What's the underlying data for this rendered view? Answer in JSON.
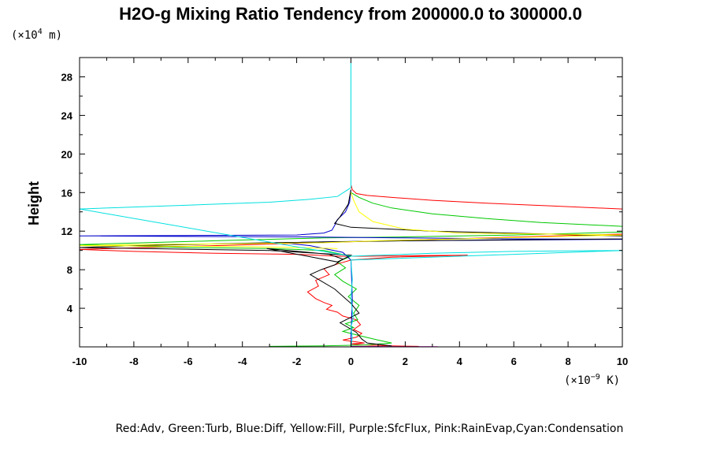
{
  "chart_data": {
    "type": "line",
    "title": "H2O-g Mixing Ratio Tendency from 200000.0 to 300000.0",
    "ylabel": "Height",
    "y_unit": {
      "base": "(×10",
      "exp": "4",
      "rest": " m)"
    },
    "x_unit": {
      "base": "(×10",
      "exp": "−9",
      "rest": " K)"
    },
    "caption": "Red:Adv, Green:Turb, Blue:Diff, Yellow:Fill, Purple:SfcFlux, Pink:RainEvap,Cyan:Condensation",
    "xlim": [
      -10,
      10
    ],
    "ylim": [
      0,
      30
    ],
    "x_ticks": [
      -10,
      -8,
      -6,
      -4,
      -2,
      0,
      2,
      4,
      6,
      8,
      10
    ],
    "y_ticks": [
      4,
      8,
      12,
      16,
      20,
      24,
      28
    ],
    "x_unit_scale": "1e-9",
    "y_unit_scale": "1e4 m",
    "series": [
      {
        "color": "#ff0000",
        "x": [
          0.0,
          0.05,
          0.2,
          0.6,
          1.5,
          3.0,
          5.0,
          7.5,
          10.0,
          10.0,
          -10.0,
          -8.0,
          -5.0,
          -2.0,
          -0.5,
          0.5,
          2.0,
          4.3,
          1.5,
          0.0,
          -0.5,
          -1.0,
          -0.8,
          -1.3,
          -1.2,
          -1.6,
          -1.3,
          -1.0,
          -0.7,
          -0.9,
          -0.5,
          -0.3,
          0.2,
          0.35,
          0.1,
          0.4,
          0.2,
          -0.3,
          0.5,
          0.0,
          0.5,
          1.5,
          2.5
        ],
        "y": [
          16.8,
          16.3,
          15.9,
          15.7,
          15.5,
          15.2,
          14.9,
          14.6,
          14.3,
          11.7,
          10.1,
          9.9,
          9.7,
          9.6,
          9.4,
          9.4,
          9.45,
          9.5,
          9.3,
          9.0,
          8.6,
          8.1,
          7.5,
          6.9,
          6.3,
          5.7,
          5.0,
          4.6,
          4.3,
          3.9,
          3.6,
          3.2,
          2.8,
          2.3,
          1.8,
          1.4,
          1.0,
          0.7,
          0.4,
          0.3,
          0.2,
          0.1,
          0.05
        ]
      },
      {
        "color": "#00c800",
        "x": [
          0.0,
          0.3,
          0.8,
          1.5,
          3.0,
          5.0,
          7.0,
          10.0,
          10.0,
          6.0,
          2.0,
          -1.0,
          -5.0,
          -10.0,
          -6.0,
          -3.0,
          -1.0,
          0.0,
          -0.5,
          -0.2,
          -0.6,
          -0.3,
          0.2,
          -0.1,
          0.3,
          0.1,
          0.25,
          -0.2,
          0.1,
          -0.3,
          0.4,
          1.0,
          1.5,
          0.5,
          -1.0,
          -3.0
        ],
        "y": [
          16.0,
          15.5,
          14.9,
          14.4,
          13.8,
          13.3,
          12.9,
          12.5,
          11.9,
          11.6,
          11.4,
          11.3,
          11.0,
          10.6,
          10.3,
          10.2,
          10.0,
          9.4,
          8.8,
          8.2,
          7.5,
          6.8,
          6.0,
          5.2,
          4.3,
          3.5,
          2.8,
          2.4,
          2.0,
          1.6,
          1.1,
          0.7,
          0.4,
          0.2,
          0.1,
          0.05
        ]
      },
      {
        "color": "#0000cc",
        "x": [
          0.0,
          -0.05,
          -0.2,
          -0.5,
          -0.6,
          -0.7,
          -1.0,
          -2.0,
          -6.0,
          -10.0,
          -2.0,
          2.0,
          6.0,
          10.0,
          2.0,
          -1.0,
          -2.5,
          -1.5,
          -0.3,
          0.0,
          0.05,
          0.0,
          0.02
        ],
        "y": [
          16.3,
          15.0,
          14.0,
          13.2,
          12.6,
          12.1,
          11.8,
          11.6,
          11.55,
          11.5,
          11.4,
          11.3,
          11.2,
          11.15,
          11.0,
          10.9,
          10.8,
          10.5,
          9.8,
          9.0,
          5.0,
          1.0,
          0.2
        ]
      },
      {
        "color": "#000000",
        "x": [
          0.0,
          -0.1,
          -0.4,
          -0.6,
          0.0,
          3.0,
          10.0,
          10.0,
          2.0,
          -3.0,
          -8.0,
          -10.0,
          -3.0,
          0.0,
          -0.5,
          -3.1,
          -0.8,
          -0.3,
          -0.6,
          -1.1,
          -1.5,
          -1.2,
          -0.6,
          0.0,
          0.3,
          -0.4,
          0.2,
          0.4,
          0.6,
          1.5
        ],
        "y": [
          16.3,
          14.8,
          13.5,
          12.8,
          12.4,
          12.0,
          11.5,
          11.2,
          11.0,
          10.8,
          10.5,
          10.3,
          10.0,
          9.5,
          8.8,
          10.2,
          9.6,
          9.1,
          8.5,
          8.0,
          7.5,
          7.0,
          6.0,
          4.5,
          3.5,
          2.5,
          1.5,
          0.8,
          0.4,
          0.1
        ]
      },
      {
        "color": "#ffff00",
        "x": [
          0.0,
          0.1,
          0.3,
          0.8,
          2.0,
          4.0,
          10.0,
          4.0,
          1.0,
          -1.0,
          -4.0,
          -8.0,
          -10.0,
          -4.0,
          -2.0,
          -0.5
        ],
        "y": [
          16.0,
          15.2,
          14.0,
          13.0,
          12.2,
          11.8,
          11.6,
          11.2,
          11.0,
          10.8,
          10.7,
          10.6,
          10.5,
          10.4,
          10.3,
          10.2
        ]
      },
      {
        "color": "#00e0e0",
        "x": [
          0.0,
          0.0,
          0.0,
          -0.5,
          -1.5,
          -3.0,
          -6.0,
          -10.0,
          0.0,
          3.0,
          6.0,
          10.0,
          0.0,
          0.05,
          0.0,
          0.08,
          0.0,
          0.05,
          0.0
        ],
        "y": [
          30.0,
          20.0,
          16.5,
          15.6,
          15.3,
          15.0,
          14.7,
          14.3,
          9.4,
          9.7,
          9.9,
          10.0,
          9.0,
          7.0,
          5.0,
          3.0,
          2.0,
          1.0,
          0.0
        ]
      },
      {
        "color": "#aa00aa",
        "x": [
          0.0,
          2.5,
          3.0
        ],
        "y": [
          0.05,
          0.02,
          0.02
        ]
      },
      {
        "color": "#ff66ff",
        "x": [
          2.5,
          3.2
        ],
        "y": [
          0.03,
          0.03
        ]
      }
    ]
  }
}
